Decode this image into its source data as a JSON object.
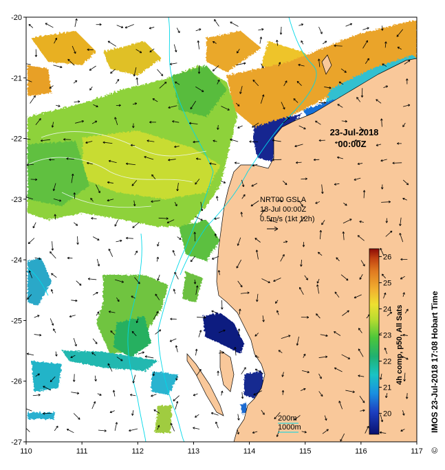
{
  "map": {
    "date": "23-Jul-2018",
    "time": "00:00Z",
    "vector_label": "NRT00 GSLA",
    "vector_date": "18-Jul 00:00Z",
    "vector_scale": "0.5m/s (1kt 12h)",
    "contour_200": "200m",
    "contour_1000": "1000m",
    "side_credit": "IMOS 23-Jul-2018 17:08 Hobart Time",
    "copyright": "©",
    "colorbar_title": "4h comp, p50, All Sats",
    "colorbar_ticks": [
      "20",
      "21",
      "22",
      "23",
      "24",
      "25",
      "26"
    ],
    "colorbar_range": [
      19.2,
      26.3
    ],
    "x_ticks": [
      "110",
      "111",
      "112",
      "113",
      "114",
      "115",
      "116",
      "117"
    ],
    "y_ticks": [
      "-20",
      "-21",
      "-22",
      "-23",
      "-24",
      "-25",
      "-26",
      "-27"
    ],
    "lon_range": [
      110,
      117
    ],
    "lat_range": [
      -27,
      -20
    ],
    "colors": {
      "land": "#f9c89a",
      "contour": "#00d8e8",
      "sst_cold": "#10207a",
      "sst_warm": "#e8a020"
    }
  }
}
